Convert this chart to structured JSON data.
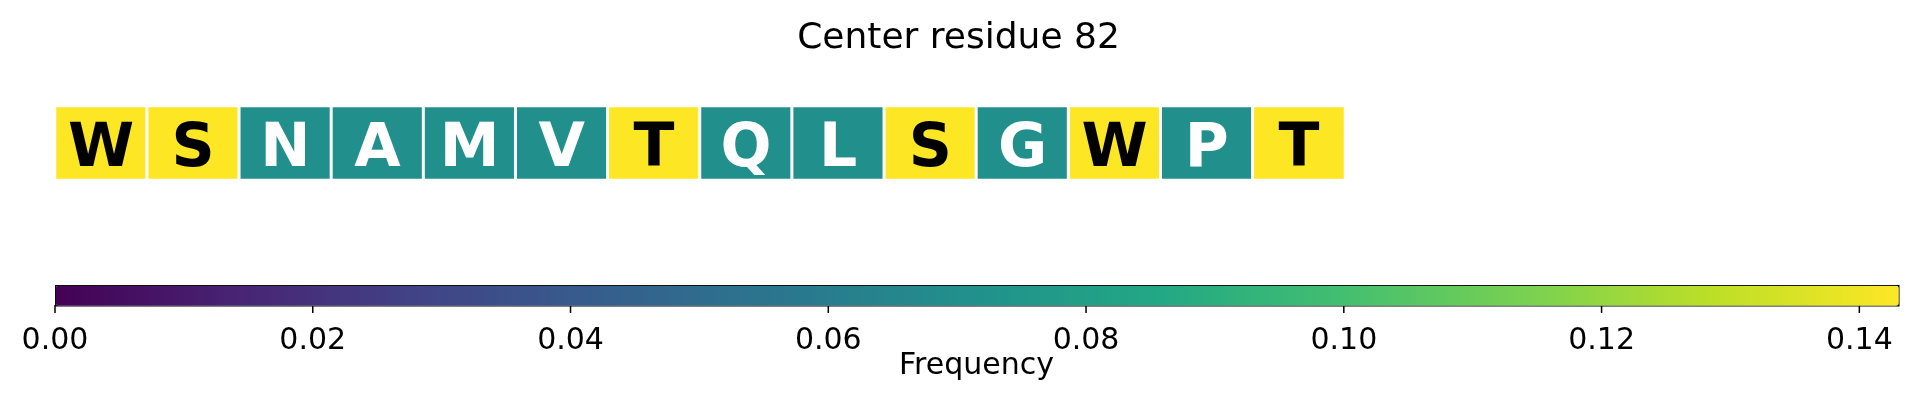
{
  "chart_data": {
    "type": "heatmap",
    "title": "Center residue 82",
    "categories": [
      null,
      null,
      null,
      null,
      null,
      null,
      null,
      null,
      null,
      null,
      null,
      null,
      null,
      null
    ],
    "y_categories": [
      null
    ],
    "cells": [
      [
        0.143,
        0.143,
        0.071,
        0.071,
        0.071,
        0.071,
        0.143,
        0.071,
        0.071,
        0.143,
        0.071,
        0.143,
        0.071,
        0.143
      ]
    ],
    "cell_labels": [
      [
        "W",
        "S",
        "N",
        "A",
        "M",
        "V",
        "T",
        "Q",
        "L",
        "S",
        "G",
        "W",
        "P",
        "T"
      ]
    ],
    "clim": [
      0,
      0.143
    ],
    "cticks": [
      {
        "value": 0,
        "label": "0.00"
      },
      {
        "value": 0.02,
        "label": "0.02"
      },
      {
        "value": 0.04,
        "label": "0.04"
      },
      {
        "value": 0.06,
        "label": "0.06"
      },
      {
        "value": 0.08,
        "label": "0.08"
      },
      {
        "value": 0.1,
        "label": "0.10"
      },
      {
        "value": 0.12,
        "label": "0.12"
      },
      {
        "value": 0.14,
        "label": "0.14"
      }
    ],
    "clabel": "Frequency"
  }
}
